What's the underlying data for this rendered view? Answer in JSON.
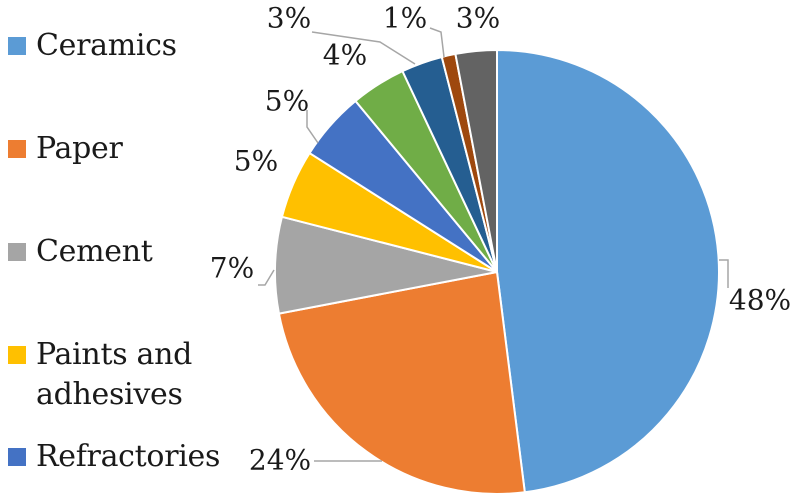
{
  "chart_data": {
    "type": "pie",
    "title": "",
    "start_angle_deg": 0,
    "direction": "clockwise",
    "slices": [
      {
        "label": "Ceramics",
        "value": 48,
        "display": "48%",
        "color": "#5b9bd5"
      },
      {
        "label": "Paper",
        "value": 24,
        "display": "24%",
        "color": "#ed7d31"
      },
      {
        "label": "Cement",
        "value": 7,
        "display": "7%",
        "color": "#a5a5a5"
      },
      {
        "label": "Paints and adhesives",
        "value": 5,
        "display": "5%",
        "color": "#ffc000"
      },
      {
        "label": "Refractories",
        "value": 5,
        "display": "5%",
        "color": "#4472c4"
      },
      {
        "label": "",
        "value": 4,
        "display": "4%",
        "color": "#70ad47"
      },
      {
        "label": "",
        "value": 3,
        "display": "3%",
        "color": "#255e91"
      },
      {
        "label": "",
        "value": 1,
        "display": "1%",
        "color": "#9e480e"
      },
      {
        "label": "",
        "value": 3,
        "display": "3%",
        "color": "#636363"
      }
    ],
    "legend": {
      "placement": "left",
      "entries": [
        "Ceramics",
        "Paper",
        "Cement",
        "Paints and adhesives",
        "Refractories"
      ]
    }
  }
}
